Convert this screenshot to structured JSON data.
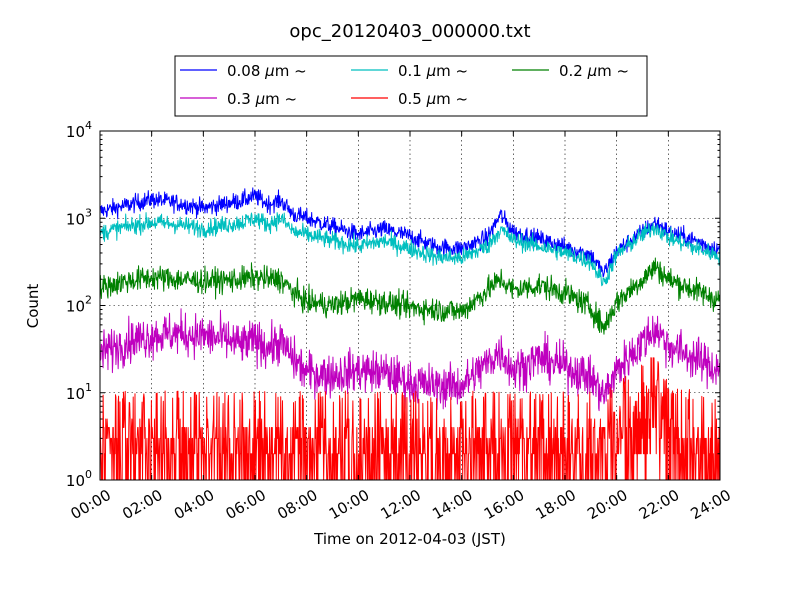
{
  "chart_data": {
    "type": "line",
    "title": "opc_20120403_000000.txt",
    "xlabel": "Time on 2012-04-03 (JST)",
    "ylabel": "Count",
    "yscale": "log",
    "ylim": [
      1,
      10000
    ],
    "xlim": [
      0,
      24
    ],
    "x_tick_labels": [
      "00:00",
      "02:00",
      "04:00",
      "06:00",
      "08:00",
      "10:00",
      "12:00",
      "14:00",
      "16:00",
      "18:00",
      "20:00",
      "22:00",
      "24:00"
    ],
    "y_tick_labels": [
      {
        "base": "10",
        "exp": "0"
      },
      {
        "base": "10",
        "exp": "1"
      },
      {
        "base": "10",
        "exp": "2"
      },
      {
        "base": "10",
        "exp": "3"
      },
      {
        "base": "10",
        "exp": "4"
      }
    ],
    "grid": true,
    "legend": {
      "placement": "top",
      "columns": 3
    },
    "x": [
      0,
      1,
      2,
      3,
      4,
      5,
      5.5,
      6,
      6.5,
      7,
      7.5,
      8,
      9,
      10,
      11,
      12,
      13,
      14,
      15,
      15.5,
      16,
      17,
      18,
      19,
      19.5,
      20,
      21,
      21.5,
      22,
      23,
      24
    ],
    "series": [
      {
        "name": "0.08 μm ~",
        "label_html": "0.08 <tspan font-style='italic'>μ</tspan>m ~",
        "color": "#0000ff",
        "noise": 0.05,
        "values": [
          1200,
          1400,
          1650,
          1500,
          1300,
          1500,
          1600,
          1800,
          1450,
          1600,
          1100,
          1000,
          800,
          650,
          750,
          620,
          470,
          450,
          600,
          1100,
          700,
          580,
          470,
          380,
          230,
          420,
          700,
          900,
          700,
          560,
          430
        ]
      },
      {
        "name": "0.1 μm ~",
        "label_html": "0.1 <tspan font-style='italic'>μ</tspan>m ~",
        "color": "#00bfbf",
        "noise": 0.05,
        "values": [
          680,
          800,
          900,
          850,
          760,
          850,
          900,
          1000,
          850,
          1000,
          700,
          650,
          550,
          480,
          550,
          450,
          360,
          350,
          480,
          750,
          560,
          480,
          400,
          320,
          180,
          380,
          650,
          800,
          600,
          460,
          370
        ]
      },
      {
        "name": "0.2 μm ~",
        "label_html": "0.2 <tspan font-style='italic'>μ</tspan>m ~",
        "color": "#008000",
        "noise": 0.07,
        "values": [
          160,
          190,
          210,
          200,
          190,
          195,
          200,
          210,
          200,
          200,
          140,
          110,
          100,
          120,
          110,
          95,
          90,
          85,
          150,
          200,
          150,
          170,
          140,
          95,
          55,
          110,
          200,
          280,
          200,
          150,
          115
        ]
      },
      {
        "name": "0.3 μm ~",
        "label_html": "0.3 <tspan font-style='italic'>μ</tspan>m ~",
        "color": "#bf00bf",
        "noise": 0.12,
        "values": [
          28,
          38,
          45,
          48,
          45,
          40,
          35,
          40,
          33,
          38,
          24,
          17,
          16,
          18,
          17,
          13,
          12,
          12,
          22,
          30,
          18,
          25,
          20,
          15,
          9,
          18,
          38,
          55,
          35,
          25,
          18
        ]
      },
      {
        "name": "0.5 μm ~",
        "label_html": "0.5 <tspan font-style='italic'>μ</tspan>m ~",
        "color": "#ff0000",
        "noise": 0,
        "values": [
          3,
          3,
          3,
          3,
          3,
          3,
          3,
          3,
          3,
          3,
          3,
          3,
          3,
          3,
          3,
          3,
          3,
          3,
          3,
          3,
          3,
          3,
          3,
          3,
          3,
          4,
          8,
          10,
          4,
          3,
          3
        ]
      }
    ]
  }
}
